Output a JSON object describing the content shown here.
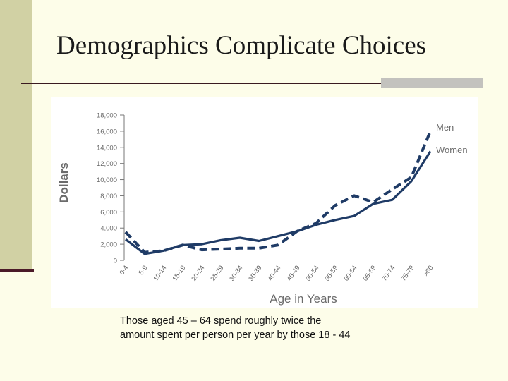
{
  "slide": {
    "title": "Demographics Complicate Choices",
    "caption_line1": "Those aged 45 – 64 spend roughly twice the",
    "caption_line2": "amount spent per person per year by those 18 - 44"
  },
  "colors": {
    "background": "#fdfde9",
    "sidebar": "#d1d1a4",
    "accent_dark": "#4b1a28",
    "series": "#1f3b66"
  },
  "chart_data": {
    "type": "line",
    "xlabel": "Age in Years",
    "ylabel": "Dollars",
    "ylim": [
      0,
      18000
    ],
    "yticks": [
      "0",
      "2,000",
      "4,000",
      "6,000",
      "8,000",
      "10,000",
      "12,000",
      "14,000",
      "16,000",
      "18,000"
    ],
    "categories": [
      "0-4",
      "5-9",
      "10-14",
      "15-19",
      "20-24",
      "25-29",
      "30-34",
      "35-39",
      "40-44",
      "45-49",
      "50-54",
      "55-59",
      "60-64",
      "65-69",
      "70-74",
      "75-79",
      ">80"
    ],
    "series": [
      {
        "name": "Men",
        "style": "dashed",
        "values": [
          3500,
          1000,
          1200,
          1900,
          1300,
          1400,
          1500,
          1500,
          1900,
          3600,
          4600,
          6800,
          8000,
          7200,
          8800,
          10300,
          16000
        ]
      },
      {
        "name": "Women",
        "style": "solid",
        "values": [
          2600,
          800,
          1200,
          1900,
          2000,
          2500,
          2800,
          2400,
          3000,
          3600,
          4400,
          5000,
          5500,
          7000,
          7500,
          9800,
          13500
        ]
      }
    ]
  }
}
